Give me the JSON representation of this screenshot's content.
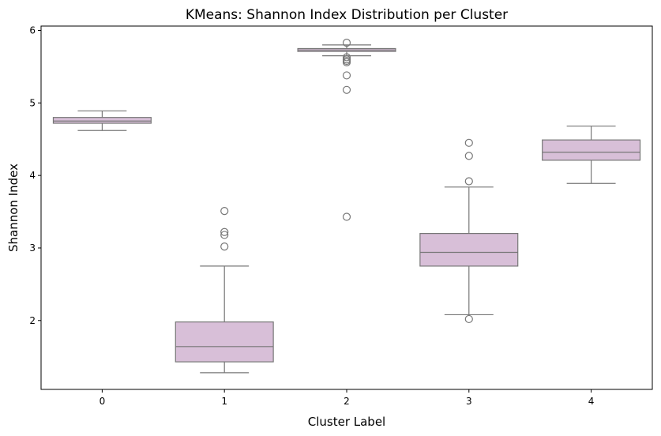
{
  "chart_data": {
    "type": "box",
    "title": "KMeans: Shannon Index Distribution per Cluster",
    "xlabel": "Cluster Label",
    "ylabel": "Shannon Index",
    "categories": [
      "0",
      "1",
      "2",
      "3",
      "4"
    ],
    "ylim": [
      1.05,
      6.06
    ],
    "yticks": [
      2,
      3,
      4,
      5,
      6
    ],
    "box_color": "#d8bfd8",
    "line_color": "#777777",
    "grid": false,
    "legend": "none",
    "boxes": [
      {
        "category": "0",
        "whisker_low": 4.62,
        "q1": 4.72,
        "median": 4.75,
        "q3": 4.8,
        "whisker_high": 4.89,
        "outliers": []
      },
      {
        "category": "1",
        "whisker_low": 1.28,
        "q1": 1.43,
        "median": 1.64,
        "q3": 1.98,
        "whisker_high": 2.75,
        "outliers": [
          3.02,
          3.18,
          3.22,
          3.51
        ]
      },
      {
        "category": "2",
        "whisker_low": 5.65,
        "q1": 5.71,
        "median": 5.73,
        "q3": 5.75,
        "whisker_high": 5.8,
        "outliers": [
          5.83,
          5.63,
          5.6,
          5.58,
          5.56,
          5.38,
          5.18,
          3.43
        ]
      },
      {
        "category": "3",
        "whisker_low": 2.08,
        "q1": 2.75,
        "median": 2.94,
        "q3": 3.2,
        "whisker_high": 3.84,
        "outliers": [
          2.02,
          3.92,
          4.27,
          4.45
        ]
      },
      {
        "category": "4",
        "whisker_low": 3.89,
        "q1": 4.21,
        "median": 4.32,
        "q3": 4.49,
        "whisker_high": 4.68,
        "outliers": []
      }
    ]
  }
}
